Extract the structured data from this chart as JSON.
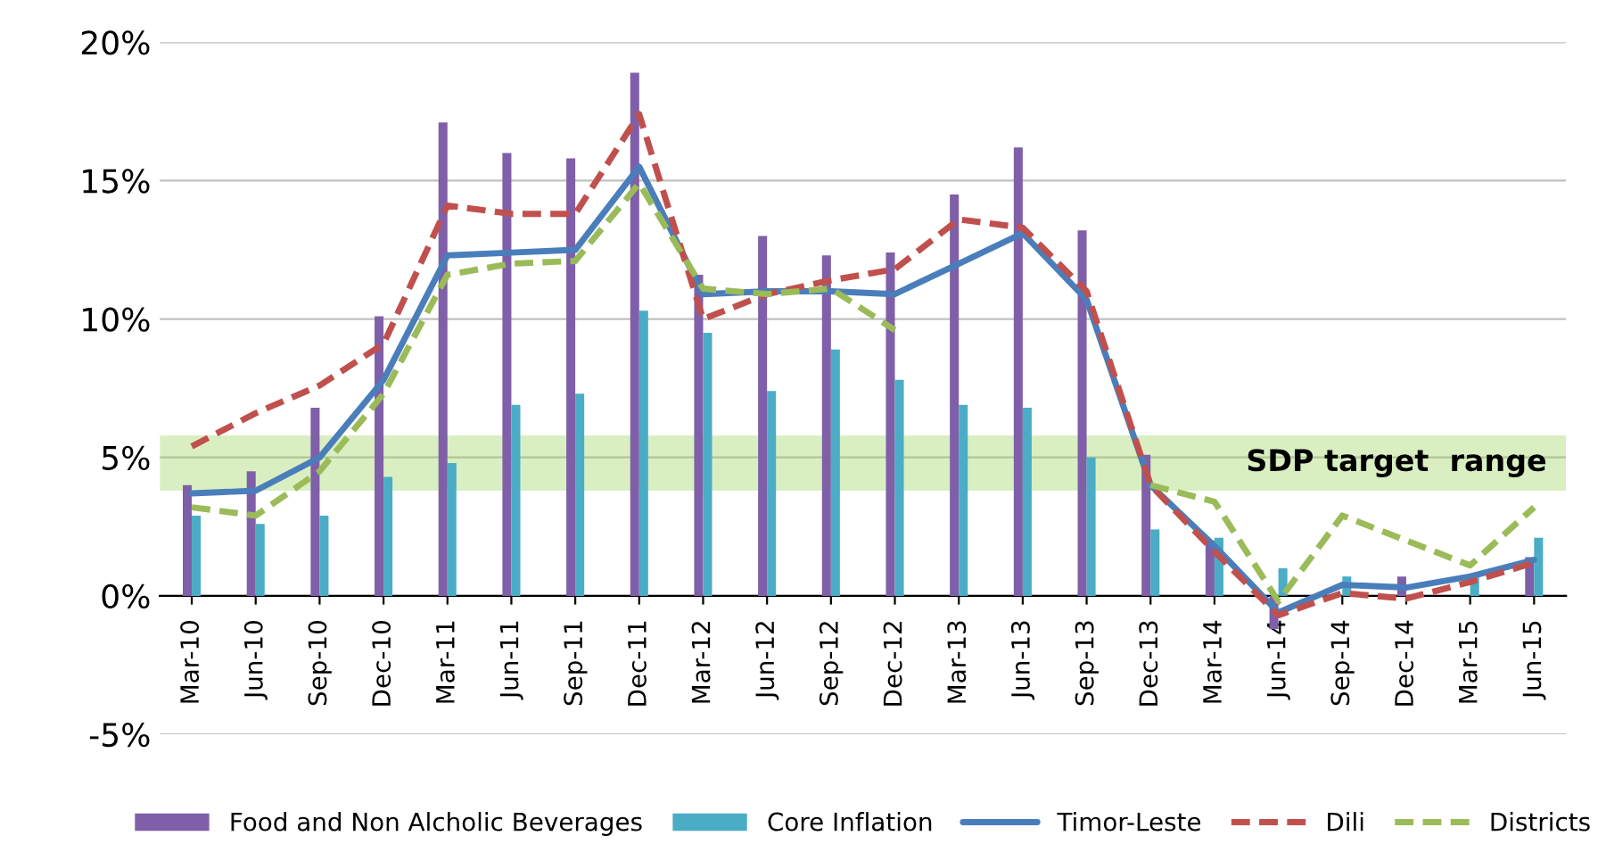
{
  "chart_data": {
    "type": "bar",
    "categories": [
      "Mar-10",
      "Jun-10",
      "Sep-10",
      "Dec-10",
      "Mar-11",
      "Jun-11",
      "Sep-11",
      "Dec-11",
      "Mar-12",
      "Jun-12",
      "Sep-12",
      "Dec-12",
      "Mar-13",
      "Jun-13",
      "Sep-13",
      "Dec-13",
      "Mar-14",
      "Jun-14",
      "Sep-14",
      "Dec-14",
      "Mar-15",
      "Jun-15"
    ],
    "series": [
      {
        "name": "Food and Non Alcholic Beverages",
        "color": "#7f5fa8",
        "values": [
          4.0,
          4.5,
          6.8,
          10.1,
          17.1,
          16.0,
          15.8,
          18.9,
          11.6,
          13.0,
          12.3,
          12.4,
          14.5,
          16.2,
          13.2,
          5.1,
          2.0,
          -1.2,
          null,
          0.7,
          null,
          1.4
        ]
      },
      {
        "name": "Core Inflation",
        "color": "#4bacc6",
        "values": [
          2.9,
          2.6,
          2.9,
          4.3,
          4.8,
          6.9,
          7.3,
          10.3,
          9.5,
          7.4,
          8.9,
          7.8,
          6.9,
          6.8,
          5.0,
          2.4,
          2.1,
          1.0,
          0.7,
          null,
          0.8,
          2.1
        ]
      },
      {
        "name": "Timor-Leste",
        "type": "line",
        "line_style": "solid",
        "color": "#4a7ebb",
        "values": [
          3.7,
          3.8,
          5.0,
          7.8,
          12.3,
          12.4,
          12.5,
          15.5,
          10.9,
          11.0,
          11.0,
          10.9,
          12.0,
          13.1,
          10.7,
          4.0,
          1.8,
          -0.6,
          0.4,
          0.3,
          0.7,
          1.3
        ]
      },
      {
        "name": "Dili",
        "type": "line",
        "line_style": "dashed",
        "color": "#c0504d",
        "values": [
          5.4,
          6.6,
          7.6,
          9.1,
          14.1,
          13.8,
          13.8,
          17.4,
          10.0,
          10.9,
          11.4,
          11.8,
          13.6,
          13.3,
          11.0,
          4.0,
          1.6,
          -0.7,
          0.1,
          -0.1,
          0.5,
          1.2
        ]
      },
      {
        "name": "Districts",
        "type": "line",
        "line_style": "dashed",
        "color": "#9bbb59",
        "values": [
          3.2,
          2.9,
          4.5,
          7.3,
          11.6,
          12.0,
          12.1,
          14.9,
          11.1,
          10.9,
          11.1,
          9.6,
          null,
          null,
          null,
          4.0,
          3.4,
          -0.2,
          2.9,
          2.0,
          1.1,
          3.2
        ]
      }
    ],
    "ylim": [
      -5,
      20
    ],
    "yticks": [
      {
        "value": -5,
        "label": "-5%"
      },
      {
        "value": 0,
        "label": "0%"
      },
      {
        "value": 5,
        "label": "5%"
      },
      {
        "value": 10,
        "label": "10%"
      },
      {
        "value": 15,
        "label": "15%"
      },
      {
        "value": 20,
        "label": "20%"
      }
    ],
    "bands": [
      {
        "axis": "y",
        "from": 3.8,
        "to": 5.8,
        "label": "SDP target  range",
        "color": "#92d050"
      }
    ],
    "grid": "y",
    "legend": "bottom",
    "marker": "none"
  }
}
